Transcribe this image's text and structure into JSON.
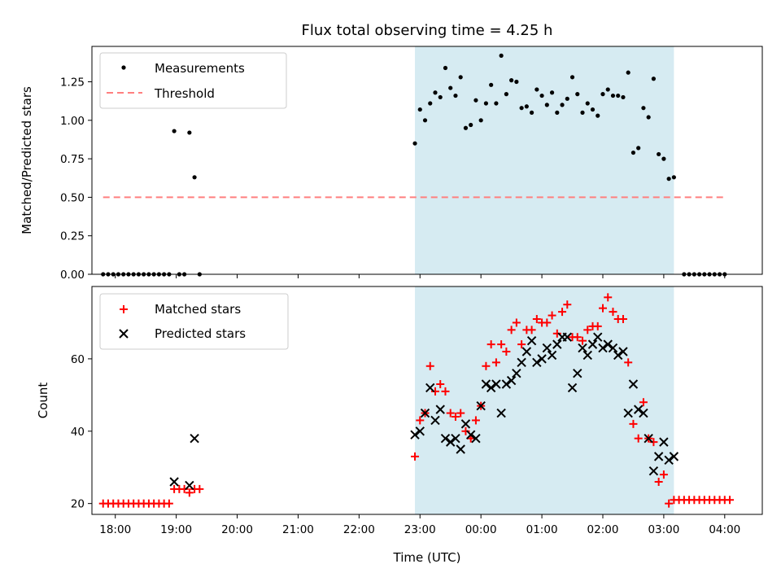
{
  "chart_data": [
    {
      "type": "scatter",
      "title": "Flux total observing time = 4.25 h",
      "xlabel": "",
      "ylabel": "Matched/Predicted stars",
      "ylim": [
        0,
        1.48
      ],
      "xlim": [
        "17:37",
        "04:37"
      ],
      "yticks": [
        "0.00",
        "0.25",
        "0.50",
        "0.75",
        "1.00",
        "1.25"
      ],
      "ytick_values": [
        0,
        0.25,
        0.5,
        0.75,
        1.0,
        1.25
      ],
      "grid": false,
      "legend_position": "upper-left",
      "highlight_span": {
        "start": "22:55",
        "end": "03:10",
        "color": "#add8e6"
      },
      "series": [
        {
          "name": "Measurements",
          "marker": "dot",
          "color": "#000000",
          "points": [
            [
              "17:48",
              0
            ],
            [
              "17:53",
              0
            ],
            [
              "17:58",
              0
            ],
            [
              "18:03",
              0
            ],
            [
              "18:08",
              0
            ],
            [
              "18:13",
              0
            ],
            [
              "18:18",
              0
            ],
            [
              "18:23",
              0
            ],
            [
              "18:28",
              0
            ],
            [
              "18:33",
              0
            ],
            [
              "18:38",
              0
            ],
            [
              "18:43",
              0
            ],
            [
              "18:48",
              0
            ],
            [
              "18:53",
              0
            ],
            [
              "18:58",
              0.93
            ],
            [
              "19:03",
              0
            ],
            [
              "19:08",
              0
            ],
            [
              "19:13",
              0.92
            ],
            [
              "19:18",
              0.63
            ],
            [
              "19:23",
              0
            ],
            [
              "22:55",
              0.85
            ],
            [
              "23:00",
              1.07
            ],
            [
              "23:05",
              1.0
            ],
            [
              "23:10",
              1.11
            ],
            [
              "23:15",
              1.18
            ],
            [
              "23:20",
              1.15
            ],
            [
              "23:25",
              1.34
            ],
            [
              "23:30",
              1.21
            ],
            [
              "23:35",
              1.16
            ],
            [
              "23:40",
              1.28
            ],
            [
              "23:45",
              0.95
            ],
            [
              "23:50",
              0.97
            ],
            [
              "23:55",
              1.13
            ],
            [
              "00:00",
              1.0
            ],
            [
              "00:05",
              1.11
            ],
            [
              "00:10",
              1.23
            ],
            [
              "00:15",
              1.11
            ],
            [
              "00:20",
              1.42
            ],
            [
              "00:25",
              1.17
            ],
            [
              "00:30",
              1.26
            ],
            [
              "00:35",
              1.25
            ],
            [
              "00:40",
              1.08
            ],
            [
              "00:45",
              1.09
            ],
            [
              "00:50",
              1.05
            ],
            [
              "00:55",
              1.2
            ],
            [
              "01:00",
              1.16
            ],
            [
              "01:05",
              1.1
            ],
            [
              "01:10",
              1.18
            ],
            [
              "01:15",
              1.05
            ],
            [
              "01:20",
              1.1
            ],
            [
              "01:25",
              1.14
            ],
            [
              "01:30",
              1.28
            ],
            [
              "01:35",
              1.17
            ],
            [
              "01:40",
              1.05
            ],
            [
              "01:45",
              1.11
            ],
            [
              "01:50",
              1.07
            ],
            [
              "01:55",
              1.03
            ],
            [
              "02:00",
              1.17
            ],
            [
              "02:05",
              1.2
            ],
            [
              "02:10",
              1.16
            ],
            [
              "02:15",
              1.16
            ],
            [
              "02:20",
              1.15
            ],
            [
              "02:25",
              1.31
            ],
            [
              "02:30",
              0.79
            ],
            [
              "02:35",
              0.82
            ],
            [
              "02:40",
              1.08
            ],
            [
              "02:45",
              1.02
            ],
            [
              "02:50",
              1.27
            ],
            [
              "02:55",
              0.78
            ],
            [
              "03:00",
              0.75
            ],
            [
              "03:05",
              0.62
            ],
            [
              "03:10",
              0.63
            ],
            [
              "03:20",
              0
            ],
            [
              "03:25",
              0
            ],
            [
              "03:30",
              0
            ],
            [
              "03:35",
              0
            ],
            [
              "03:40",
              0
            ],
            [
              "03:45",
              0
            ],
            [
              "03:50",
              0
            ],
            [
              "03:55",
              0
            ],
            [
              "04:00",
              0
            ]
          ]
        },
        {
          "name": "Threshold",
          "type": "line",
          "style": "dashed",
          "color": "#ff7f7f",
          "points": [
            [
              "17:48",
              0.5
            ],
            [
              "04:00",
              0.5
            ]
          ]
        }
      ]
    },
    {
      "type": "scatter",
      "title": "",
      "xlabel": "Time (UTC)",
      "ylabel": "Count",
      "ylim": [
        17,
        80
      ],
      "xlim": [
        "17:37",
        "04:37"
      ],
      "yticks": [
        "20",
        "40",
        "60"
      ],
      "ytick_values": [
        20,
        40,
        60
      ],
      "xticks": [
        "18:00",
        "19:00",
        "20:00",
        "21:00",
        "22:00",
        "23:00",
        "00:00",
        "01:00",
        "02:00",
        "03:00",
        "04:00"
      ],
      "grid": false,
      "legend_position": "upper-left",
      "highlight_span": {
        "start": "22:55",
        "end": "03:10",
        "color": "#add8e6"
      },
      "series": [
        {
          "name": "Matched stars",
          "marker": "plus",
          "color": "#ff0000",
          "points": [
            [
              "17:48",
              20
            ],
            [
              "17:53",
              20
            ],
            [
              "17:58",
              20
            ],
            [
              "18:03",
              20
            ],
            [
              "18:08",
              20
            ],
            [
              "18:13",
              20
            ],
            [
              "18:18",
              20
            ],
            [
              "18:23",
              20
            ],
            [
              "18:28",
              20
            ],
            [
              "18:33",
              20
            ],
            [
              "18:38",
              20
            ],
            [
              "18:43",
              20
            ],
            [
              "18:48",
              20
            ],
            [
              "18:53",
              20
            ],
            [
              "18:58",
              24
            ],
            [
              "19:03",
              24
            ],
            [
              "19:08",
              24
            ],
            [
              "19:13",
              23
            ],
            [
              "19:18",
              24
            ],
            [
              "19:23",
              24
            ],
            [
              "22:55",
              33
            ],
            [
              "23:00",
              43
            ],
            [
              "23:05",
              45
            ],
            [
              "23:10",
              58
            ],
            [
              "23:15",
              51
            ],
            [
              "23:20",
              53
            ],
            [
              "23:25",
              51
            ],
            [
              "23:30",
              45
            ],
            [
              "23:35",
              44
            ],
            [
              "23:40",
              45
            ],
            [
              "23:45",
              40
            ],
            [
              "23:50",
              38
            ],
            [
              "23:55",
              43
            ],
            [
              "00:00",
              47
            ],
            [
              "00:05",
              58
            ],
            [
              "00:10",
              64
            ],
            [
              "00:15",
              59
            ],
            [
              "00:20",
              64
            ],
            [
              "00:25",
              62
            ],
            [
              "00:30",
              68
            ],
            [
              "00:35",
              70
            ],
            [
              "00:40",
              64
            ],
            [
              "00:45",
              68
            ],
            [
              "00:50",
              68
            ],
            [
              "00:55",
              71
            ],
            [
              "01:00",
              70
            ],
            [
              "01:05",
              70
            ],
            [
              "01:10",
              72
            ],
            [
              "01:15",
              67
            ],
            [
              "01:20",
              73
            ],
            [
              "01:25",
              75
            ],
            [
              "01:30",
              66
            ],
            [
              "01:35",
              66
            ],
            [
              "01:40",
              65
            ],
            [
              "01:45",
              68
            ],
            [
              "01:50",
              69
            ],
            [
              "01:55",
              69
            ],
            [
              "02:00",
              74
            ],
            [
              "02:05",
              77
            ],
            [
              "02:10",
              73
            ],
            [
              "02:15",
              71
            ],
            [
              "02:20",
              71
            ],
            [
              "02:25",
              59
            ],
            [
              "02:30",
              42
            ],
            [
              "02:35",
              38
            ],
            [
              "02:40",
              48
            ],
            [
              "02:45",
              38
            ],
            [
              "02:50",
              37
            ],
            [
              "02:55",
              26
            ],
            [
              "03:00",
              28
            ],
            [
              "03:05",
              20
            ],
            [
              "03:10",
              21
            ],
            [
              "03:15",
              21
            ],
            [
              "03:20",
              21
            ],
            [
              "03:25",
              21
            ],
            [
              "03:30",
              21
            ],
            [
              "03:35",
              21
            ],
            [
              "03:40",
              21
            ],
            [
              "03:45",
              21
            ],
            [
              "03:50",
              21
            ],
            [
              "03:55",
              21
            ],
            [
              "04:00",
              21
            ],
            [
              "04:05",
              21
            ]
          ]
        },
        {
          "name": "Predicted stars",
          "marker": "x",
          "color": "#000000",
          "points": [
            [
              "18:58",
              26
            ],
            [
              "19:13",
              25
            ],
            [
              "19:18",
              38
            ],
            [
              "22:55",
              39
            ],
            [
              "23:00",
              40
            ],
            [
              "23:05",
              45
            ],
            [
              "23:10",
              52
            ],
            [
              "23:15",
              43
            ],
            [
              "23:20",
              46
            ],
            [
              "23:25",
              38
            ],
            [
              "23:30",
              37
            ],
            [
              "23:35",
              38
            ],
            [
              "23:40",
              35
            ],
            [
              "23:45",
              42
            ],
            [
              "23:50",
              39
            ],
            [
              "23:55",
              38
            ],
            [
              "00:00",
              47
            ],
            [
              "00:05",
              53
            ],
            [
              "00:10",
              52
            ],
            [
              "00:15",
              53
            ],
            [
              "00:20",
              45
            ],
            [
              "00:25",
              53
            ],
            [
              "00:30",
              54
            ],
            [
              "00:35",
              56
            ],
            [
              "00:40",
              59
            ],
            [
              "00:45",
              62
            ],
            [
              "00:50",
              65
            ],
            [
              "00:55",
              59
            ],
            [
              "01:00",
              60
            ],
            [
              "01:05",
              63
            ],
            [
              "01:10",
              61
            ],
            [
              "01:15",
              64
            ],
            [
              "01:20",
              66
            ],
            [
              "01:25",
              66
            ],
            [
              "01:30",
              52
            ],
            [
              "01:35",
              56
            ],
            [
              "01:40",
              63
            ],
            [
              "01:45",
              61
            ],
            [
              "01:50",
              64
            ],
            [
              "01:55",
              66
            ],
            [
              "02:00",
              63
            ],
            [
              "02:05",
              64
            ],
            [
              "02:10",
              63
            ],
            [
              "02:15",
              61
            ],
            [
              "02:20",
              62
            ],
            [
              "02:25",
              45
            ],
            [
              "02:30",
              53
            ],
            [
              "02:35",
              46
            ],
            [
              "02:40",
              45
            ],
            [
              "02:45",
              38
            ],
            [
              "02:50",
              29
            ],
            [
              "02:55",
              33
            ],
            [
              "03:00",
              37
            ],
            [
              "03:05",
              32
            ],
            [
              "03:10",
              33
            ]
          ]
        }
      ]
    }
  ]
}
